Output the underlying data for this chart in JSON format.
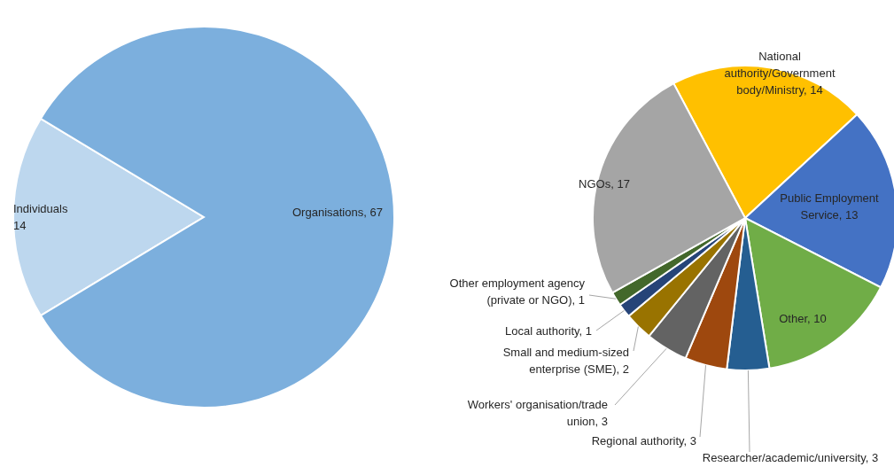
{
  "chart_data": [
    {
      "type": "pie",
      "categories": [
        "Individuals",
        "Organisations"
      ],
      "values": [
        14,
        67
      ],
      "colors": [
        "#bdd7ee",
        "#7cafdd"
      ],
      "value_labels": [
        "14",
        ", 67"
      ],
      "legend": false
    },
    {
      "type": "pie",
      "categories": [
        "National authority/Government body/Ministry",
        "Public Employment Service",
        "Other",
        "Researcher/academic/university",
        "Regional authority",
        "Workers' organisation/trade union",
        "Small and medium-sized enterprise (SME)",
        "Local authority",
        "Other employment agency (private or NGO)",
        "NGOs"
      ],
      "values": [
        14,
        13,
        10,
        3,
        3,
        3,
        2,
        1,
        1,
        17
      ],
      "colors": [
        "#ffc000",
        "#4472c4",
        "#70ad47",
        "#255e91",
        "#9e480e",
        "#636363",
        "#997300",
        "#264478",
        "#43682b",
        "#a5a5a5"
      ],
      "value_labels": [
        ", 14",
        ", 13",
        ", 10",
        ", 3",
        ", 3",
        ", 3",
        ", 2",
        ", 1",
        ", 1",
        ", 17"
      ],
      "legend": false
    }
  ]
}
